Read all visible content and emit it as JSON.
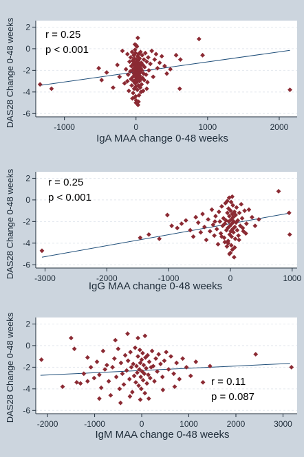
{
  "colors": {
    "page_background": "#ccd5de",
    "plot_background": "#ffffff",
    "marker": "#8b2a33",
    "fit_line": "#1f4e79",
    "axis": "#1f2d3a"
  },
  "chart_data": [
    {
      "type": "scatter",
      "title": "",
      "xlabel": "IgA MAA change 0-48 weeks",
      "ylabel": "DAS28 Change 0-48 weeks",
      "xlim": [
        -1400,
        2250
      ],
      "ylim": [
        -6.3,
        2.6
      ],
      "xticks": [
        -1000,
        0,
        1000,
        2000
      ],
      "xtick_labels": [
        "-1000",
        "0",
        "1000",
        "2000"
      ],
      "yticks": [
        2,
        0,
        -2,
        -4,
        -6
      ],
      "ytick_labels": [
        "2",
        "0",
        "-2",
        "-4",
        "-6"
      ],
      "grid": "horizontal dashed",
      "legend": "none",
      "marker_shape": "diamond",
      "annotations": [
        "r = 0.25",
        "p < 0.001"
      ],
      "annotation_position": "top-left",
      "fit_line": {
        "x": [
          -1350,
          2150
        ],
        "y": [
          -3.4,
          -0.15
        ]
      },
      "points": [
        [
          -1340,
          -3.3
        ],
        [
          -1180,
          -3.7
        ],
        [
          -520,
          -1.8
        ],
        [
          -480,
          -2.9
        ],
        [
          -410,
          -2.2
        ],
        [
          -320,
          -3.6
        ],
        [
          -260,
          -1.5
        ],
        [
          -230,
          -2.6
        ],
        [
          -190,
          -0.2
        ],
        [
          -160,
          -3.2
        ],
        [
          -140,
          -1.9
        ],
        [
          -120,
          -0.5
        ],
        [
          -110,
          -2.4
        ],
        [
          -100,
          -3.9
        ],
        [
          -90,
          -1.2
        ],
        [
          -80,
          -2.1
        ],
        [
          -75,
          -0.8
        ],
        [
          -70,
          -2.8
        ],
        [
          -65,
          -1.6
        ],
        [
          -60,
          -3.4
        ],
        [
          -55,
          -0.3
        ],
        [
          -50,
          -2.0
        ],
        [
          -45,
          -1.1
        ],
        [
          -42,
          -2.6
        ],
        [
          -40,
          -4.1
        ],
        [
          -38,
          -1.4
        ],
        [
          -35,
          -3.0
        ],
        [
          -32,
          -0.6
        ],
        [
          -30,
          -2.3
        ],
        [
          -28,
          -1.8
        ],
        [
          -26,
          -3.7
        ],
        [
          -24,
          -0.9
        ],
        [
          -22,
          -2.5
        ],
        [
          -20,
          -1.3
        ],
        [
          -18,
          -4.5
        ],
        [
          -16,
          -2.0
        ],
        [
          -14,
          -0.1
        ],
        [
          -12,
          -3.2
        ],
        [
          -10,
          -1.6
        ],
        [
          -8,
          -2.9
        ],
        [
          -6,
          -0.4
        ],
        [
          -4,
          -1.9
        ],
        [
          -2,
          -3.5
        ],
        [
          0,
          -2.2
        ],
        [
          2,
          -1.0
        ],
        [
          4,
          -4.8
        ],
        [
          6,
          -2.7
        ],
        [
          8,
          -1.5
        ],
        [
          10,
          -3.1
        ],
        [
          12,
          0.2
        ],
        [
          14,
          -2.4
        ],
        [
          16,
          -1.2
        ],
        [
          18,
          -3.8
        ],
        [
          20,
          -2.0
        ],
        [
          22,
          -0.7
        ],
        [
          24,
          -2.9
        ],
        [
          26,
          -1.7
        ],
        [
          28,
          -5.2
        ],
        [
          30,
          -2.3
        ],
        [
          32,
          -1.1
        ],
        [
          34,
          -3.4
        ],
        [
          36,
          -0.5
        ],
        [
          38,
          -2.6
        ],
        [
          40,
          -1.9
        ],
        [
          42,
          -4.3
        ],
        [
          44,
          -2.1
        ],
        [
          46,
          -1.4
        ],
        [
          48,
          -3.0
        ],
        [
          50,
          -0.9
        ],
        [
          52,
          -2.5
        ],
        [
          55,
          -1.6
        ],
        [
          58,
          -3.6
        ],
        [
          60,
          -2.2
        ],
        [
          63,
          -0.3
        ],
        [
          66,
          -1.8
        ],
        [
          70,
          -2.8
        ],
        [
          74,
          -1.3
        ],
        [
          78,
          -3.3
        ],
        [
          82,
          -2.0
        ],
        [
          86,
          -0.6
        ],
        [
          90,
          -2.7
        ],
        [
          95,
          -1.5
        ],
        [
          100,
          -3.9
        ],
        [
          105,
          -2.3
        ],
        [
          110,
          -1.0
        ],
        [
          115,
          -2.9
        ],
        [
          120,
          -1.7
        ],
        [
          130,
          -0.4
        ],
        [
          140,
          -2.4
        ],
        [
          150,
          -1.2
        ],
        [
          160,
          -3.1
        ],
        [
          170,
          -0.8
        ],
        [
          180,
          -2.0
        ],
        [
          200,
          -1.4
        ],
        [
          220,
          -0.2
        ],
        [
          240,
          -2.6
        ],
        [
          260,
          -1.0
        ],
        [
          280,
          -0.5
        ],
        [
          300,
          -1.8
        ],
        [
          330,
          -1.3
        ],
        [
          360,
          -0.7
        ],
        [
          400,
          -1.6
        ],
        [
          430,
          -2.3
        ],
        [
          480,
          -1.9
        ],
        [
          560,
          -0.6
        ],
        [
          610,
          -3.7
        ],
        [
          620,
          -1.0
        ],
        [
          880,
          0.9
        ],
        [
          930,
          -0.6
        ],
        [
          2150,
          -3.8
        ],
        [
          -15,
          0.4
        ],
        [
          25,
          1.0
        ],
        [
          5,
          0.3
        ],
        [
          -50,
          -4.6
        ],
        [
          70,
          -4.0
        ],
        [
          -120,
          -3.0
        ],
        [
          150,
          -3.7
        ],
        [
          0,
          -5.0
        ],
        [
          -5,
          -4.4
        ],
        [
          35,
          -4.9
        ]
      ]
    },
    {
      "type": "scatter",
      "title": "",
      "xlabel": "IgG MAA change 0-48 weeks",
      "ylabel": "DAS28 Change 0-48 weeks",
      "xlim": [
        -3150,
        1080
      ],
      "ylim": [
        -6.3,
        2.6
      ],
      "xticks": [
        -3000,
        -2000,
        -1000,
        0,
        1000
      ],
      "xtick_labels": [
        "-3000",
        "-2000",
        "-1000",
        "0",
        "1000"
      ],
      "yticks": [
        2,
        0,
        -2,
        -4,
        -6
      ],
      "ytick_labels": [
        "2",
        "0",
        "-2",
        "-4",
        "-6"
      ],
      "grid": "horizontal dashed",
      "legend": "none",
      "marker_shape": "diamond",
      "annotations": [
        "r = 0.25",
        "p < 0.001"
      ],
      "annotation_position": "top-left",
      "fit_line": {
        "x": [
          -3050,
          980
        ],
        "y": [
          -5.3,
          -1.2
        ]
      },
      "points": [
        [
          -3050,
          -4.7
        ],
        [
          -1460,
          -3.5
        ],
        [
          -1320,
          -3.2
        ],
        [
          -1150,
          -3.6
        ],
        [
          -1020,
          -1.4
        ],
        [
          -950,
          -2.4
        ],
        [
          -860,
          -2.6
        ],
        [
          -790,
          -2.2
        ],
        [
          -720,
          -1.9
        ],
        [
          -650,
          -2.8
        ],
        [
          -600,
          -3.4
        ],
        [
          -560,
          -1.6
        ],
        [
          -520,
          -2.1
        ],
        [
          -480,
          -3.0
        ],
        [
          -450,
          -1.3
        ],
        [
          -420,
          -2.5
        ],
        [
          -390,
          -3.7
        ],
        [
          -360,
          -1.8
        ],
        [
          -330,
          -2.9
        ],
        [
          -300,
          -0.9
        ],
        [
          -280,
          -2.3
        ],
        [
          -260,
          -3.3
        ],
        [
          -240,
          -1.5
        ],
        [
          -220,
          -2.7
        ],
        [
          -200,
          -4.1
        ],
        [
          -185,
          -1.1
        ],
        [
          -170,
          -2.0
        ],
        [
          -155,
          -3.1
        ],
        [
          -140,
          -0.6
        ],
        [
          -125,
          -2.4
        ],
        [
          -112,
          -1.7
        ],
        [
          -100,
          -3.5
        ],
        [
          -90,
          -2.2
        ],
        [
          -80,
          -0.3
        ],
        [
          -72,
          -1.9
        ],
        [
          -64,
          -2.8
        ],
        [
          -56,
          -4.3
        ],
        [
          -48,
          -1.2
        ],
        [
          -42,
          -2.6
        ],
        [
          -36,
          -3.8
        ],
        [
          -30,
          -0.8
        ],
        [
          -24,
          -2.0
        ],
        [
          -18,
          -1.5
        ],
        [
          -12,
          -3.2
        ],
        [
          -6,
          -2.4
        ],
        [
          0,
          -4.9
        ],
        [
          4,
          -1.0
        ],
        [
          8,
          -2.9
        ],
        [
          12,
          -0.2
        ],
        [
          16,
          -1.8
        ],
        [
          20,
          -3.4
        ],
        [
          24,
          -2.2
        ],
        [
          28,
          -1.3
        ],
        [
          32,
          -4.6
        ],
        [
          36,
          -2.7
        ],
        [
          40,
          -0.5
        ],
        [
          45,
          -1.6
        ],
        [
          50,
          -3.0
        ],
        [
          55,
          -2.0
        ],
        [
          60,
          -5.3
        ],
        [
          66,
          -1.1
        ],
        [
          72,
          -2.5
        ],
        [
          78,
          -3.6
        ],
        [
          85,
          -1.4
        ],
        [
          92,
          -2.1
        ],
        [
          100,
          -0.7
        ],
        [
          110,
          -2.8
        ],
        [
          120,
          -1.9
        ],
        [
          130,
          -3.3
        ],
        [
          145,
          -1.2
        ],
        [
          160,
          -2.4
        ],
        [
          175,
          -0.4
        ],
        [
          190,
          -1.7
        ],
        [
          210,
          -2.9
        ],
        [
          230,
          -1.0
        ],
        [
          260,
          -2.2
        ],
        [
          300,
          -0.9
        ],
        [
          350,
          -1.6
        ],
        [
          400,
          -2.4
        ],
        [
          460,
          -1.8
        ],
        [
          780,
          0.8
        ],
        [
          950,
          -1.2
        ],
        [
          960,
          -3.2
        ],
        [
          -20,
          0.2
        ],
        [
          30,
          0.3
        ],
        [
          -50,
          -0.1
        ],
        [
          15,
          -4.2
        ],
        [
          -35,
          -4.0
        ],
        [
          70,
          -4.4
        ],
        [
          -90,
          -3.9
        ],
        [
          140,
          -3.7
        ],
        [
          -140,
          -3.4
        ],
        [
          200,
          -2.6
        ],
        [
          -250,
          -2.0
        ],
        [
          250,
          -3.1
        ],
        [
          -15,
          -5.0
        ]
      ]
    },
    {
      "type": "scatter",
      "title": "",
      "xlabel": "IgM MAA change 0-48 weeks",
      "ylabel": "DAS28 Change 0-48 weeks",
      "xlim": [
        -2250,
        3300
      ],
      "ylim": [
        -6.3,
        2.6
      ],
      "xticks": [
        -2000,
        -1000,
        0,
        1000,
        2000,
        3000
      ],
      "xtick_labels": [
        "-2000",
        "-1000",
        "0",
        "1000",
        "2000",
        "3000"
      ],
      "yticks": [
        2,
        0,
        -2,
        -4,
        -6
      ],
      "ytick_labels": [
        "2",
        "0",
        "-2",
        "-4",
        "-6"
      ],
      "grid": "horizontal dashed",
      "legend": "none",
      "marker_shape": "diamond",
      "annotations": [
        "r = 0.11",
        "p = 0.087"
      ],
      "annotation_position": "bottom-right",
      "fit_line": {
        "x": [
          -2150,
          3150
        ],
        "y": [
          -2.75,
          -1.65
        ]
      },
      "points": [
        [
          -2130,
          -1.3
        ],
        [
          -1680,
          -3.8
        ],
        [
          -1500,
          0.7
        ],
        [
          -1430,
          -0.3
        ],
        [
          -1380,
          -3.4
        ],
        [
          -1300,
          -3.5
        ],
        [
          -1230,
          -2.6
        ],
        [
          -1150,
          -1.1
        ],
        [
          -1080,
          -2.0
        ],
        [
          -1010,
          -3.0
        ],
        [
          -950,
          -1.5
        ],
        [
          -900,
          -2.7
        ],
        [
          -860,
          -3.9
        ],
        [
          -820,
          -0.5
        ],
        [
          -780,
          -2.2
        ],
        [
          -740,
          -1.8
        ],
        [
          -700,
          -3.3
        ],
        [
          -660,
          -4.6
        ],
        [
          -620,
          -2.0
        ],
        [
          -580,
          -1.2
        ],
        [
          -540,
          -2.9
        ],
        [
          -500,
          -0.3
        ],
        [
          -470,
          -4.0
        ],
        [
          -440,
          -1.6
        ],
        [
          -410,
          -2.6
        ],
        [
          -380,
          -3.6
        ],
        [
          -350,
          -0.9
        ],
        [
          -320,
          -2.3
        ],
        [
          -290,
          -1.4
        ],
        [
          -260,
          -3.1
        ],
        [
          -240,
          -0.6
        ],
        [
          -220,
          -2.0
        ],
        [
          -200,
          -4.3
        ],
        [
          -180,
          -1.7
        ],
        [
          -160,
          -2.8
        ],
        [
          -140,
          -0.2
        ],
        [
          -125,
          -3.4
        ],
        [
          -110,
          -1.9
        ],
        [
          -95,
          -2.5
        ],
        [
          -80,
          -1.0
        ],
        [
          -65,
          -3.7
        ],
        [
          -50,
          -2.2
        ],
        [
          -40,
          -0.4
        ],
        [
          -30,
          -1.6
        ],
        [
          -20,
          -2.9
        ],
        [
          -10,
          -4.0
        ],
        [
          0,
          -1.3
        ],
        [
          10,
          -2.4
        ],
        [
          20,
          -0.7
        ],
        [
          30,
          -3.2
        ],
        [
          42,
          -1.8
        ],
        [
          55,
          -2.6
        ],
        [
          68,
          -4.4
        ],
        [
          80,
          -1.1
        ],
        [
          95,
          -2.1
        ],
        [
          110,
          -3.5
        ],
        [
          125,
          -0.9
        ],
        [
          140,
          -2.7
        ],
        [
          160,
          -1.5
        ],
        [
          180,
          -3.0
        ],
        [
          200,
          -2.0
        ],
        [
          220,
          -0.5
        ],
        [
          245,
          -1.9
        ],
        [
          270,
          -3.3
        ],
        [
          300,
          -1.2
        ],
        [
          330,
          -2.4
        ],
        [
          360,
          -0.8
        ],
        [
          400,
          -1.7
        ],
        [
          440,
          -2.9
        ],
        [
          480,
          -1.4
        ],
        [
          520,
          -0.6
        ],
        [
          570,
          -2.2
        ],
        [
          620,
          -1.0
        ],
        [
          680,
          -2.6
        ],
        [
          740,
          -1.6
        ],
        [
          800,
          -3.1
        ],
        [
          870,
          -1.2
        ],
        [
          950,
          -2.0
        ],
        [
          1040,
          -2.8
        ],
        [
          1150,
          -1.5
        ],
        [
          1300,
          -3.4
        ],
        [
          1450,
          -1.9
        ],
        [
          2420,
          -0.8
        ],
        [
          3180,
          -2.0
        ],
        [
          -560,
          0.5
        ],
        [
          -300,
          1.1
        ],
        [
          -80,
          0.7
        ],
        [
          70,
          0.9
        ],
        [
          -900,
          -4.9
        ],
        [
          -450,
          -5.3
        ],
        [
          -30,
          -5.0
        ],
        [
          150,
          -4.9
        ],
        [
          -250,
          -4.7
        ],
        [
          450,
          -4.1
        ],
        [
          700,
          -3.8
        ],
        [
          -1150,
          -3.3
        ]
      ]
    }
  ]
}
